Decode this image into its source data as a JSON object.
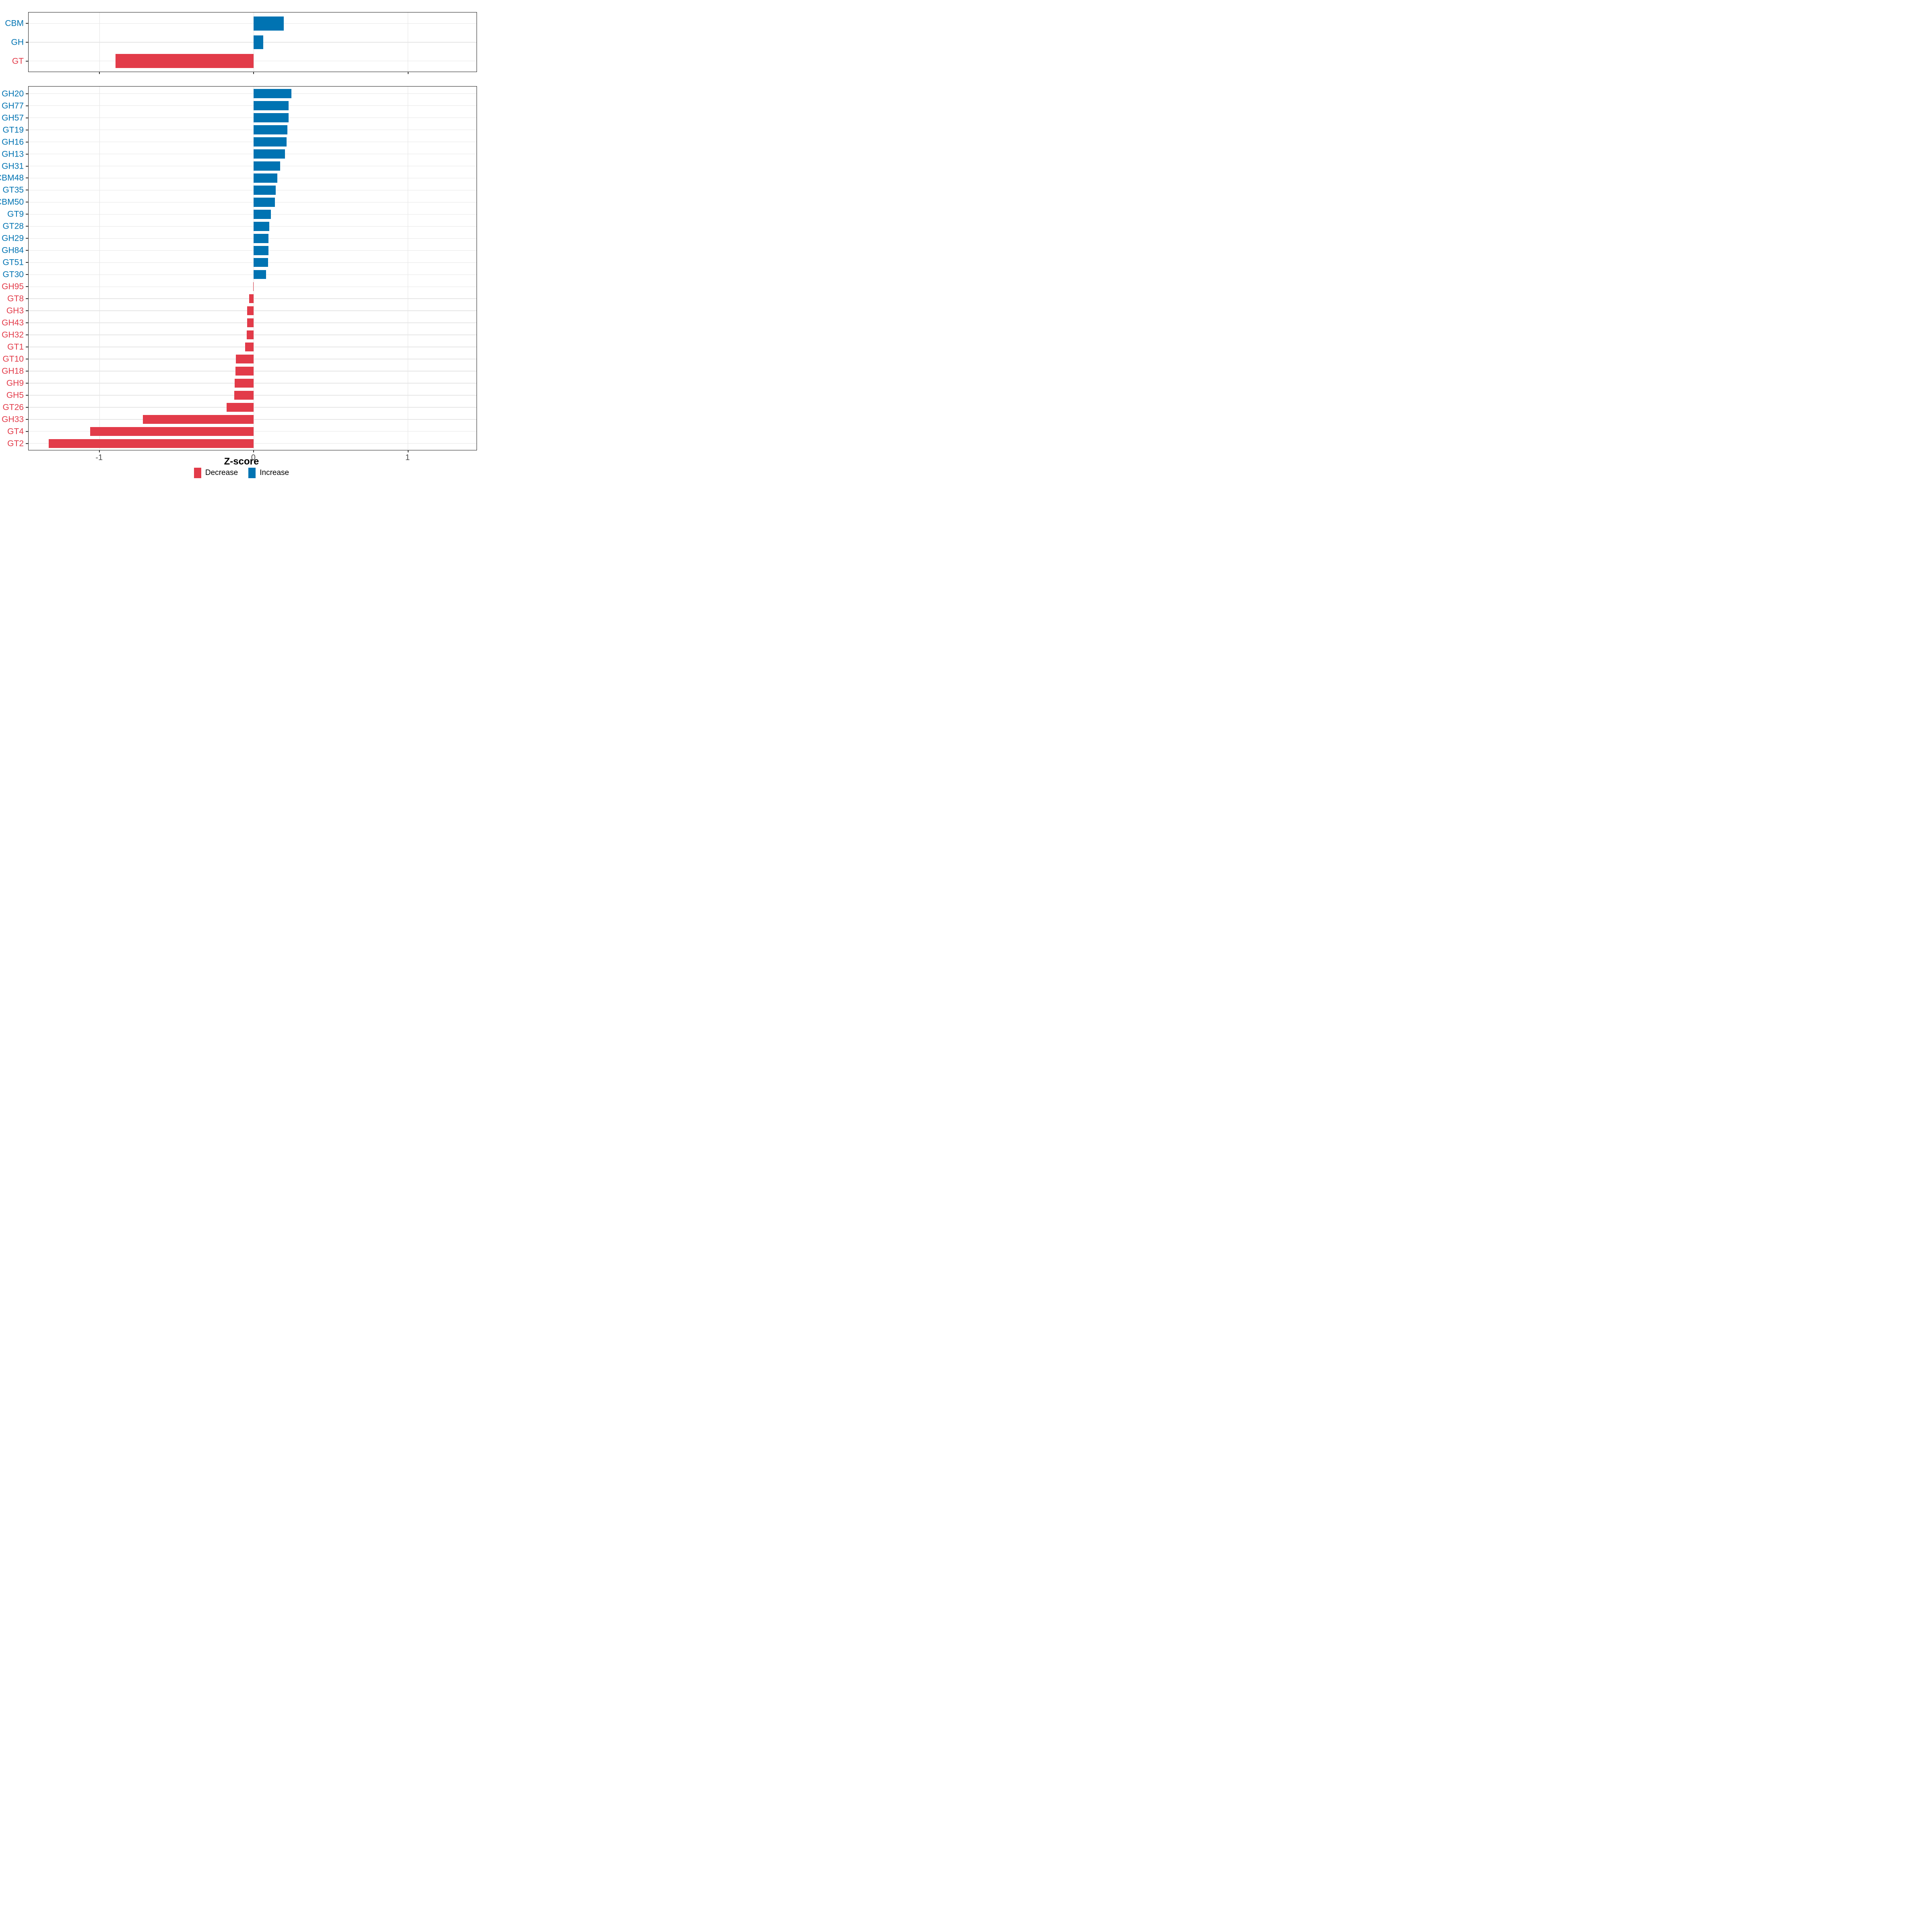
{
  "chart_data": {
    "type": "bar",
    "orientation": "horizontal",
    "title": "",
    "xlabel": "Z-score",
    "ylabel": "",
    "xlim": [
      -1.46,
      1.45
    ],
    "x_ticks": [
      -1,
      0,
      1
    ],
    "x_tick_labels": [
      "-1",
      "0",
      "1"
    ],
    "grid": true,
    "legend_position": "bottom",
    "panels": [
      {
        "name": "cazyme-class-summary",
        "categories": [
          "CBM",
          "GH",
          "GT"
        ],
        "values": [
          0.194,
          0.062,
          -0.897
        ]
      },
      {
        "name": "cazyme-family-detail",
        "categories": [
          "GH20",
          "GH77",
          "GH57",
          "GT19",
          "GH16",
          "GH13",
          "GH31",
          "CBM48",
          "GT35",
          "CBM50",
          "GT9",
          "GT28",
          "GH29",
          "GH84",
          "GT51",
          "GT30",
          "GH95",
          "GT8",
          "GH3",
          "GH43",
          "GH32",
          "GT1",
          "GT10",
          "GH18",
          "GH9",
          "GH5",
          "GT26",
          "GH33",
          "GT4",
          "GT2"
        ],
        "values": [
          0.245,
          0.227,
          0.225,
          0.219,
          0.213,
          0.203,
          0.17,
          0.152,
          0.142,
          0.137,
          0.11,
          0.102,
          0.096,
          0.095,
          0.093,
          0.081,
          -0.005,
          -0.03,
          -0.042,
          -0.044,
          -0.046,
          -0.055,
          -0.116,
          -0.118,
          -0.125,
          -0.127,
          -0.176,
          -0.72,
          -1.06,
          -1.33
        ]
      }
    ],
    "legend": {
      "entries": [
        {
          "label": "Decrease",
          "color": "#e23b49"
        },
        {
          "label": "Increase",
          "color": "#0073b2"
        }
      ]
    }
  },
  "colors": {
    "decrease": "#e23b49",
    "increase": "#0073b2",
    "grid": "#e4e4e4",
    "panel_border": "#1b1b1b",
    "tick_text": "#4d4d4d"
  }
}
